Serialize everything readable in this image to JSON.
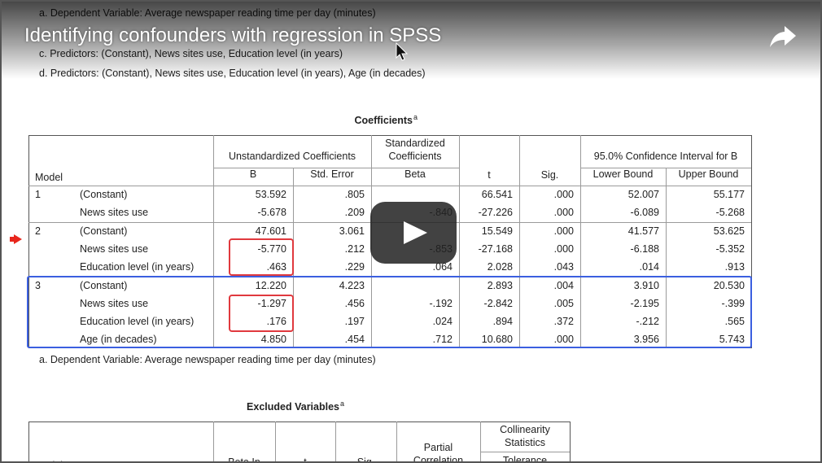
{
  "video": {
    "title": "Identifying confounders with regression in SPSS"
  },
  "notes": [
    "a. Dependent Variable: Average newspaper reading time per day (minutes)",
    "c. Predictors: (Constant), News sites use, Education level (in years)",
    "d. Predictors: (Constant), News sites use, Education level (in years), Age (in decades)"
  ],
  "coefficients": {
    "title": "Coefficients",
    "title_note": "a",
    "headers": {
      "model": "Model",
      "unstandardized": "Unstandardized Coefficients",
      "standardized": "Standardized Coefficients",
      "t": "t",
      "sig": "Sig.",
      "ci": "95.0% Confidence Interval for B",
      "b": "B",
      "std_error": "Std. Error",
      "beta": "Beta",
      "lower": "Lower Bound",
      "upper": "Upper Bound"
    },
    "models": [
      {
        "model": "1",
        "rows": [
          {
            "predictor": "(Constant)",
            "values": [
              "53.592",
              ".805",
              null,
              "66.541",
              ".000",
              "52.007",
              "55.177"
            ]
          },
          {
            "predictor": "News sites use",
            "values": [
              "-5.678",
              ".209",
              "-.840",
              "-27.226",
              ".000",
              "-6.089",
              "-5.268"
            ]
          }
        ]
      },
      {
        "model": "2",
        "rows": [
          {
            "predictor": "(Constant)",
            "values": [
              "47.601",
              "3.061",
              null,
              "15.549",
              ".000",
              "41.577",
              "53.625"
            ]
          },
          {
            "predictor": "News sites use",
            "values": [
              "-5.770",
              ".212",
              "-.853",
              "-27.168",
              ".000",
              "-6.188",
              "-5.352"
            ]
          },
          {
            "predictor": "Education level (in years)",
            "values": [
              ".463",
              ".229",
              ".064",
              "2.028",
              ".043",
              ".014",
              ".913"
            ]
          }
        ]
      },
      {
        "model": "3",
        "rows": [
          {
            "predictor": "(Constant)",
            "values": [
              "12.220",
              "4.223",
              null,
              "2.893",
              ".004",
              "3.910",
              "20.530"
            ]
          },
          {
            "predictor": "News sites use",
            "values": [
              "-1.297",
              ".456",
              "-.192",
              "-2.842",
              ".005",
              "-2.195",
              "-.399"
            ]
          },
          {
            "predictor": "Education level (in years)",
            "values": [
              ".176",
              ".197",
              ".024",
              ".894",
              ".372",
              "-.212",
              ".565"
            ]
          },
          {
            "predictor": "Age (in decades)",
            "values": [
              "4.850",
              ".454",
              ".712",
              "10.680",
              ".000",
              "3.956",
              "5.743"
            ]
          }
        ]
      }
    ],
    "footnote": "a. Dependent Variable: Average newspaper reading time per day (minutes)"
  },
  "excluded": {
    "title": "Excluded Variables",
    "title_note": "a",
    "headers": {
      "model": "Model",
      "beta_in": "Beta In",
      "t": "t",
      "sig": "Sig.",
      "partial": "Partial Correlation",
      "collinearity": "Collinearity Statistics",
      "tolerance": "Tolerance"
    }
  }
}
